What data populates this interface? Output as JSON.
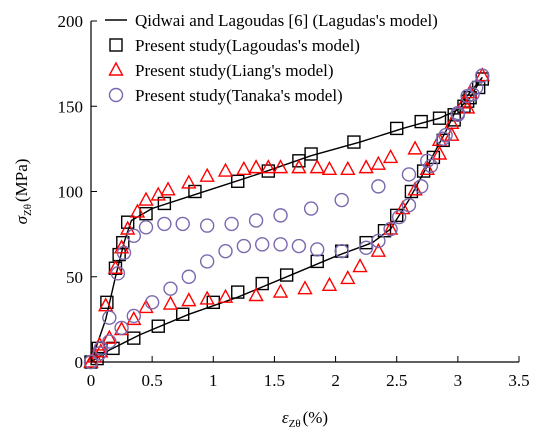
{
  "chart_data": {
    "type": "scatter",
    "xlabel": {
      "symbol": "ε",
      "sub": "Zθ",
      "unit": "(%)"
    },
    "ylabel": {
      "symbol": "σ",
      "sub": "Zθ",
      "unit": "(MPa)"
    },
    "xlim": [
      0,
      3.5
    ],
    "ylim": [
      0,
      200
    ],
    "xticks": [
      "0",
      "0.5",
      "1",
      "1.5",
      "2",
      "2.5",
      "3",
      "3.5"
    ],
    "yticks": [
      "0",
      "50",
      "100",
      "150",
      "200"
    ],
    "xtick_values": [
      0,
      0.5,
      1,
      1.5,
      2,
      2.5,
      3,
      3.5
    ],
    "ytick_values": [
      0,
      50,
      100,
      150,
      200
    ],
    "grid": false,
    "legend_position": "top-left",
    "series": [
      {
        "name": "Qidwai and Lagoudas [6] (Lagudas's model)",
        "marker": "line",
        "color": "#000000",
        "points": [
          [
            0,
            0
          ],
          [
            0.12,
            25
          ],
          [
            0.2,
            50
          ],
          [
            0.27,
            70
          ],
          [
            0.33,
            83
          ],
          [
            0.5,
            90
          ],
          [
            0.8,
            97
          ],
          [
            1.1,
            104
          ],
          [
            1.4,
            111
          ],
          [
            1.8,
            121
          ],
          [
            2.2,
            129
          ],
          [
            2.55,
            137
          ],
          [
            2.85,
            143
          ],
          [
            3.0,
            148
          ],
          [
            3.1,
            155
          ],
          [
            3.2,
            167
          ],
          [
            3.1,
            158
          ],
          [
            3.0,
            150
          ],
          [
            2.9,
            135
          ],
          [
            2.75,
            115
          ],
          [
            2.6,
            95
          ],
          [
            2.45,
            78
          ],
          [
            2.3,
            70
          ],
          [
            2.0,
            62
          ],
          [
            1.6,
            50
          ],
          [
            1.2,
            38
          ],
          [
            0.8,
            28
          ],
          [
            0.4,
            16
          ],
          [
            0.15,
            7
          ],
          [
            0,
            0
          ]
        ]
      },
      {
        "name": "Present study(Lagoudas's model)",
        "marker": "square",
        "color": "#000000",
        "points": [
          [
            0,
            0
          ],
          [
            0.06,
            8
          ],
          [
            0.13,
            35
          ],
          [
            0.2,
            55
          ],
          [
            0.23,
            63
          ],
          [
            0.26,
            70
          ],
          [
            0.3,
            82
          ],
          [
            0.45,
            87
          ],
          [
            0.6,
            93
          ],
          [
            0.85,
            100
          ],
          [
            1.2,
            106
          ],
          [
            1.45,
            112
          ],
          [
            1.7,
            118
          ],
          [
            1.8,
            122
          ],
          [
            2.15,
            129
          ],
          [
            2.5,
            137
          ],
          [
            2.7,
            141
          ],
          [
            2.85,
            143
          ],
          [
            2.97,
            145
          ],
          [
            3.05,
            150
          ],
          [
            3.1,
            155
          ],
          [
            3.17,
            161
          ],
          [
            3.2,
            166
          ],
          [
            3.08,
            153
          ],
          [
            2.97,
            142
          ],
          [
            2.88,
            130
          ],
          [
            2.8,
            120
          ],
          [
            2.72,
            112
          ],
          [
            2.62,
            100
          ],
          [
            2.5,
            86
          ],
          [
            2.4,
            77
          ],
          [
            2.25,
            70
          ],
          [
            2.05,
            65
          ],
          [
            1.85,
            59
          ],
          [
            1.6,
            51
          ],
          [
            1.4,
            46
          ],
          [
            1.2,
            41
          ],
          [
            1.0,
            35
          ],
          [
            0.75,
            28
          ],
          [
            0.55,
            21
          ],
          [
            0.35,
            14
          ],
          [
            0.18,
            8
          ],
          [
            0.05,
            2
          ]
        ]
      },
      {
        "name": "Present study(Liang's model)",
        "marker": "triangle",
        "color": "#ff0000",
        "points": [
          [
            0,
            0
          ],
          [
            0.07,
            10
          ],
          [
            0.12,
            33
          ],
          [
            0.2,
            55
          ],
          [
            0.25,
            67
          ],
          [
            0.3,
            78
          ],
          [
            0.38,
            88
          ],
          [
            0.45,
            95
          ],
          [
            0.55,
            98
          ],
          [
            0.63,
            101
          ],
          [
            0.8,
            105
          ],
          [
            0.95,
            109
          ],
          [
            1.1,
            112
          ],
          [
            1.25,
            113
          ],
          [
            1.35,
            114
          ],
          [
            1.45,
            114
          ],
          [
            1.55,
            114
          ],
          [
            1.7,
            114
          ],
          [
            1.85,
            114
          ],
          [
            1.95,
            113
          ],
          [
            2.1,
            113
          ],
          [
            2.25,
            114
          ],
          [
            2.35,
            116
          ],
          [
            2.45,
            120
          ],
          [
            2.65,
            125
          ],
          [
            2.85,
            130
          ],
          [
            2.95,
            140
          ],
          [
            3.05,
            152
          ],
          [
            3.1,
            158
          ],
          [
            3.2,
            168
          ],
          [
            3.08,
            149
          ],
          [
            2.95,
            133
          ],
          [
            2.85,
            122
          ],
          [
            2.75,
            113
          ],
          [
            2.65,
            101
          ],
          [
            2.55,
            90
          ],
          [
            2.45,
            78
          ],
          [
            2.35,
            65
          ],
          [
            2.2,
            56
          ],
          [
            2.1,
            49
          ],
          [
            1.95,
            45
          ],
          [
            1.75,
            43
          ],
          [
            1.55,
            41
          ],
          [
            1.35,
            39
          ],
          [
            1.1,
            38
          ],
          [
            0.95,
            37
          ],
          [
            0.8,
            36
          ],
          [
            0.65,
            34
          ],
          [
            0.45,
            32
          ],
          [
            0.35,
            25
          ],
          [
            0.25,
            19
          ],
          [
            0.15,
            14
          ],
          [
            0.08,
            6
          ],
          [
            0.03,
            3
          ]
        ]
      },
      {
        "name": "Present study(Tanaka's model)",
        "marker": "circle",
        "color": "#7b68ae",
        "points": [
          [
            0,
            0
          ],
          [
            0.08,
            8
          ],
          [
            0.15,
            26
          ],
          [
            0.22,
            52
          ],
          [
            0.27,
            64
          ],
          [
            0.35,
            74
          ],
          [
            0.45,
            79
          ],
          [
            0.6,
            81
          ],
          [
            0.75,
            81
          ],
          [
            0.95,
            80
          ],
          [
            1.15,
            81
          ],
          [
            1.35,
            83
          ],
          [
            1.55,
            86
          ],
          [
            1.8,
            90
          ],
          [
            2.05,
            95
          ],
          [
            2.35,
            103
          ],
          [
            2.6,
            110
          ],
          [
            2.75,
            118
          ],
          [
            2.9,
            133
          ],
          [
            3.0,
            145
          ],
          [
            3.08,
            156
          ],
          [
            3.15,
            161
          ],
          [
            3.2,
            168
          ],
          [
            3.12,
            157
          ],
          [
            3.0,
            146
          ],
          [
            2.88,
            131
          ],
          [
            2.78,
            115
          ],
          [
            2.7,
            103
          ],
          [
            2.6,
            92
          ],
          [
            2.52,
            85
          ],
          [
            2.45,
            78
          ],
          [
            2.35,
            71
          ],
          [
            2.25,
            67
          ],
          [
            2.05,
            65
          ],
          [
            1.85,
            66
          ],
          [
            1.7,
            68
          ],
          [
            1.55,
            69
          ],
          [
            1.4,
            69
          ],
          [
            1.25,
            68
          ],
          [
            1.1,
            65
          ],
          [
            0.95,
            59
          ],
          [
            0.8,
            50
          ],
          [
            0.65,
            43
          ],
          [
            0.5,
            35
          ],
          [
            0.35,
            27
          ],
          [
            0.25,
            20
          ],
          [
            0.15,
            12
          ],
          [
            0.07,
            5
          ]
        ]
      }
    ]
  }
}
